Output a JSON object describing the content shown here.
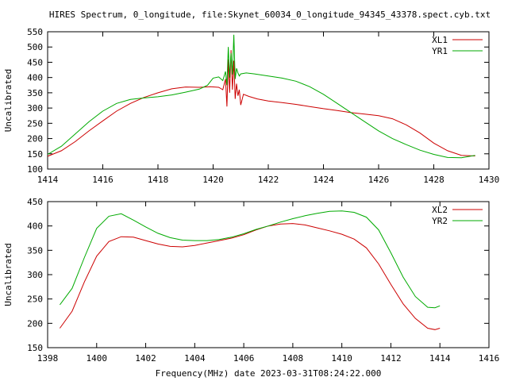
{
  "title": "HIRES Spectrum, 0_longitude, file:Skynet_60034_0_longitude_94345_43378.spect.cyb.txt",
  "footer": "Frequency(MHz) date 2023-03-31T08:24:22.000",
  "colors": {
    "red": "#cc0000",
    "green": "#00aa00"
  },
  "chart_data": [
    {
      "type": "line",
      "ylabel": "Uncalibrated",
      "xlim": [
        1414,
        1430
      ],
      "ylim": [
        100,
        550
      ],
      "xticks": [
        "1414",
        "1416",
        "1418",
        "1420",
        "1422",
        "1424",
        "1426",
        "1428",
        "1430"
      ],
      "yticks": [
        "100",
        "150",
        "200",
        "250",
        "300",
        "350",
        "400",
        "450",
        "500",
        "550"
      ],
      "legend_position": "top-right",
      "series": [
        {
          "name": "XL1",
          "color": "#cc0000",
          "x": [
            1414.0,
            1414.5,
            1415.0,
            1415.5,
            1416.0,
            1416.5,
            1417.0,
            1417.5,
            1418.0,
            1418.5,
            1419.0,
            1419.5,
            1419.9,
            1420.2,
            1420.35,
            1420.45,
            1420.5,
            1420.55,
            1420.6,
            1420.65,
            1420.7,
            1420.75,
            1420.8,
            1420.85,
            1420.9,
            1420.95,
            1421.0,
            1421.1,
            1421.3,
            1421.6,
            1422.0,
            1422.5,
            1423.0,
            1423.5,
            1424.0,
            1424.5,
            1425.0,
            1425.5,
            1426.0,
            1426.5,
            1427.0,
            1427.5,
            1428.0,
            1428.5,
            1429.0,
            1429.5
          ],
          "y": [
            142,
            160,
            190,
            225,
            258,
            290,
            315,
            335,
            350,
            363,
            369,
            368,
            370,
            368,
            360,
            395,
            305,
            460,
            350,
            490,
            360,
            455,
            330,
            380,
            340,
            360,
            310,
            345,
            338,
            330,
            323,
            318,
            312,
            305,
            298,
            292,
            285,
            280,
            275,
            265,
            245,
            218,
            185,
            160,
            145,
            143
          ]
        },
        {
          "name": "YR1",
          "color": "#00aa00",
          "x": [
            1414.0,
            1414.5,
            1415.0,
            1415.5,
            1416.0,
            1416.5,
            1417.0,
            1417.5,
            1418.0,
            1418.5,
            1419.0,
            1419.5,
            1419.8,
            1420.0,
            1420.2,
            1420.35,
            1420.45,
            1420.5,
            1420.55,
            1420.6,
            1420.65,
            1420.7,
            1420.75,
            1420.8,
            1420.85,
            1420.9,
            1420.95,
            1421.0,
            1421.2,
            1421.5,
            1422.0,
            1422.5,
            1423.0,
            1423.5,
            1424.0,
            1424.5,
            1425.0,
            1425.5,
            1426.0,
            1426.5,
            1427.0,
            1427.5,
            1428.0,
            1428.5,
            1429.0,
            1429.5
          ],
          "y": [
            148,
            175,
            215,
            255,
            290,
            315,
            328,
            333,
            337,
            343,
            352,
            362,
            375,
            398,
            402,
            390,
            420,
            375,
            500,
            400,
            480,
            410,
            540,
            395,
            430,
            415,
            405,
            412,
            415,
            412,
            405,
            398,
            388,
            370,
            345,
            315,
            285,
            255,
            225,
            200,
            180,
            162,
            148,
            138,
            137,
            145
          ]
        }
      ]
    },
    {
      "type": "line",
      "ylabel": "Uncalibrated",
      "xlim": [
        1398,
        1416
      ],
      "ylim": [
        150,
        450
      ],
      "xticks": [
        "1398",
        "1400",
        "1402",
        "1404",
        "1406",
        "1408",
        "1410",
        "1412",
        "1414",
        "1416"
      ],
      "yticks": [
        "150",
        "200",
        "250",
        "300",
        "350",
        "400",
        "450"
      ],
      "legend_position": "top-right",
      "series": [
        {
          "name": "XL2",
          "color": "#cc0000",
          "x": [
            1398.5,
            1399.0,
            1399.5,
            1400.0,
            1400.5,
            1401.0,
            1401.5,
            1402.0,
            1402.5,
            1403.0,
            1403.5,
            1404.0,
            1404.5,
            1405.0,
            1405.5,
            1406.0,
            1406.5,
            1407.0,
            1407.5,
            1408.0,
            1408.5,
            1409.0,
            1409.5,
            1410.0,
            1410.5,
            1411.0,
            1411.5,
            1412.0,
            1412.5,
            1413.0,
            1413.5,
            1413.8,
            1414.0
          ],
          "y": [
            190,
            225,
            285,
            338,
            368,
            378,
            377,
            370,
            363,
            358,
            357,
            360,
            365,
            370,
            375,
            382,
            392,
            400,
            404,
            405,
            402,
            396,
            390,
            383,
            373,
            355,
            322,
            280,
            240,
            210,
            190,
            187,
            190
          ]
        },
        {
          "name": "YR2",
          "color": "#00aa00",
          "x": [
            1398.5,
            1399.0,
            1399.5,
            1400.0,
            1400.5,
            1401.0,
            1401.5,
            1402.0,
            1402.5,
            1403.0,
            1403.5,
            1404.0,
            1404.5,
            1405.0,
            1405.5,
            1406.0,
            1406.5,
            1407.0,
            1407.5,
            1408.0,
            1408.5,
            1409.0,
            1409.5,
            1410.0,
            1410.5,
            1411.0,
            1411.5,
            1412.0,
            1412.5,
            1413.0,
            1413.5,
            1413.8,
            1414.0
          ],
          "y": [
            238,
            272,
            335,
            395,
            420,
            425,
            412,
            398,
            385,
            376,
            371,
            370,
            370,
            372,
            377,
            384,
            393,
            400,
            408,
            415,
            421,
            426,
            430,
            431,
            428,
            418,
            392,
            345,
            295,
            255,
            233,
            232,
            236
          ]
        }
      ]
    }
  ]
}
